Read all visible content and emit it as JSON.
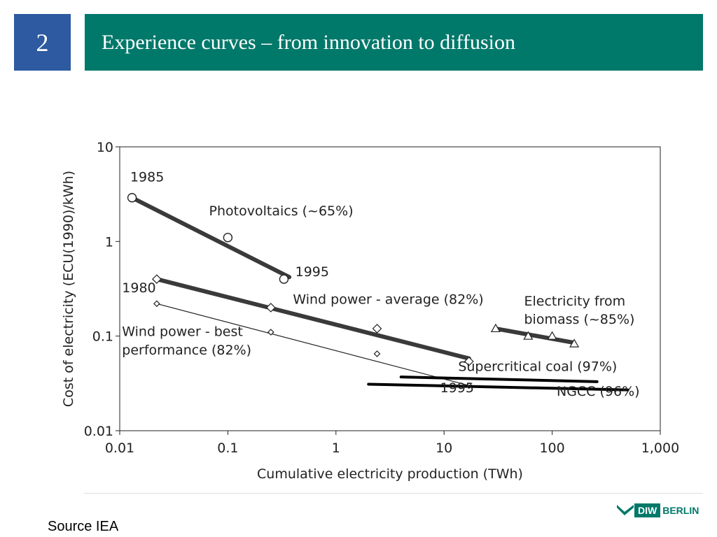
{
  "slide": {
    "number": "2",
    "title": "Experience curves – from innovation to diffusion",
    "source": "Source IEA",
    "logo": {
      "badge": "DIW",
      "text": "BERLIN"
    },
    "colors": {
      "number_box": "#2d5aa0",
      "title_bar": "#00786a"
    }
  },
  "chart_data": {
    "type": "line",
    "title": "",
    "xlabel": "Cumulative electricity production (TWh)",
    "ylabel": "Cost of electricity (ECU(1990)/kWh)",
    "xscale": "log",
    "yscale": "log",
    "xlim": [
      0.01,
      1000
    ],
    "ylim": [
      0.01,
      10
    ],
    "x_ticks": [
      {
        "v": 0.01,
        "label": "0.01"
      },
      {
        "v": 0.1,
        "label": "0.1"
      },
      {
        "v": 1,
        "label": "1"
      },
      {
        "v": 10,
        "label": "10"
      },
      {
        "v": 100,
        "label": "100"
      },
      {
        "v": 1000,
        "label": "1,000"
      }
    ],
    "y_ticks": [
      {
        "v": 0.01,
        "label": "0.01"
      },
      {
        "v": 0.1,
        "label": "0.1"
      },
      {
        "v": 1,
        "label": "1"
      },
      {
        "v": 10,
        "label": "10"
      }
    ],
    "grid": false,
    "series": [
      {
        "name": "Photovoltaics (~65%)",
        "marker": "circle",
        "points": [
          [
            0.013,
            2.9
          ],
          [
            0.1,
            1.1
          ],
          [
            0.33,
            0.4
          ]
        ],
        "trend": [
          [
            0.013,
            2.9
          ],
          [
            0.37,
            0.42
          ]
        ],
        "trend_weight": "heavy"
      },
      {
        "name": "Wind power - average (82%)",
        "marker": "diamond",
        "points": [
          [
            0.022,
            0.4
          ],
          [
            0.25,
            0.2
          ],
          [
            2.4,
            0.12
          ],
          [
            17,
            0.054
          ]
        ],
        "trend": [
          [
            0.022,
            0.4
          ],
          [
            17,
            0.058
          ]
        ],
        "trend_weight": "heavy"
      },
      {
        "name": "Wind power - best performance (82%)",
        "marker": "small-diamond",
        "points": [
          [
            0.022,
            0.22
          ],
          [
            0.25,
            0.11
          ],
          [
            2.4,
            0.065
          ],
          [
            17,
            0.03
          ]
        ],
        "trend": [
          [
            0.022,
            0.22
          ],
          [
            17,
            0.03
          ]
        ],
        "trend_weight": "thin"
      },
      {
        "name": "Electricity from biomass (~85%)",
        "marker": "triangle",
        "points": [
          [
            30,
            0.12
          ],
          [
            60,
            0.1
          ],
          [
            100,
            0.1
          ],
          [
            160,
            0.083
          ]
        ],
        "trend": [
          [
            30,
            0.12
          ],
          [
            160,
            0.085
          ]
        ],
        "trend_weight": "heavy"
      },
      {
        "name": "Supercritical coal (97%)",
        "marker": "none",
        "points": [],
        "trend": [
          [
            4,
            0.037
          ],
          [
            260,
            0.033
          ]
        ],
        "trend_weight": "heavy"
      },
      {
        "name": "NGCC (96%)",
        "marker": "none",
        "points": [],
        "trend": [
          [
            2,
            0.031
          ],
          [
            500,
            0.027
          ]
        ],
        "trend_weight": "heavy"
      }
    ],
    "annotations": [
      {
        "text": "1985",
        "x": 0.0125,
        "y": 4.3
      },
      {
        "text": "1995",
        "x": 0.42,
        "y": 0.43
      },
      {
        "text": "1980",
        "x": 0.0105,
        "y": 0.29
      },
      {
        "text": "1995",
        "x": 9.2,
        "y": 0.0255
      },
      {
        "text": "Photovoltaics (~65%)",
        "x": 0.067,
        "y": 1.88
      },
      {
        "text": "Wind power - average (82%)",
        "x": 0.4,
        "y": 0.22
      },
      {
        "text": "Electricity from",
        "x": 55,
        "y": 0.21
      },
      {
        "text": "biomass (~85%)",
        "x": 55,
        "y": 0.135
      },
      {
        "text": "Wind power - best",
        "x": 0.0105,
        "y": 0.1
      },
      {
        "text": "performance (82%)",
        "x": 0.0105,
        "y": 0.064
      },
      {
        "text": "Supercritical coal (97%)",
        "x": 13.5,
        "y": 0.043
      },
      {
        "text": "NGCC (96%)",
        "x": 110,
        "y": 0.0235
      }
    ]
  }
}
